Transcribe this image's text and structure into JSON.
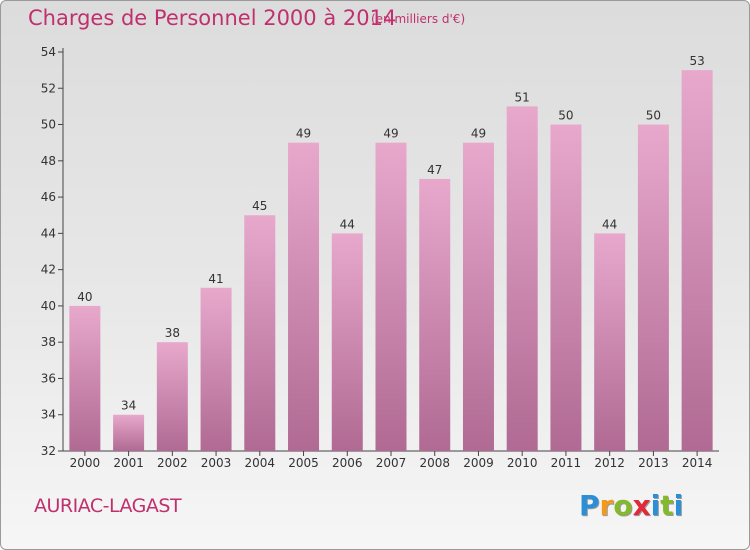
{
  "header": {
    "title": "Charges de Personnel 2000 à 2014",
    "subtitle": "(en milliers d'€)"
  },
  "footer": {
    "commune": "AURIAC-LAGAST",
    "logo_letters": [
      "P",
      "r",
      "o",
      "x",
      "i",
      "t",
      "i"
    ],
    "logo_colors": [
      "#2a8fd6",
      "#f39a1c",
      "#84b92b",
      "#e02a3a",
      "#2a8fd6",
      "#84b92b",
      "#2a8fd6"
    ]
  },
  "colors": {
    "title": "#c0306e",
    "bar_top": "#e8a8cc",
    "bar_bottom": "#b06a93"
  },
  "chart_data": {
    "type": "bar",
    "categories": [
      "2000",
      "2001",
      "2002",
      "2003",
      "2004",
      "2005",
      "2006",
      "2007",
      "2008",
      "2009",
      "2010",
      "2011",
      "2012",
      "2013",
      "2014"
    ],
    "values": [
      40,
      34,
      38,
      41,
      45,
      49,
      44,
      49,
      47,
      49,
      51,
      50,
      44,
      50,
      53
    ],
    "data_labels": [
      "40",
      "34",
      "38",
      "41",
      "45",
      "49",
      "44",
      "49",
      "47",
      "49",
      "51",
      "50",
      "44",
      "50",
      "53"
    ],
    "yticks": [
      32,
      34,
      36,
      38,
      40,
      42,
      44,
      46,
      48,
      50,
      52,
      54
    ],
    "ylim": [
      32,
      54
    ],
    "xlabel": "",
    "ylabel": "",
    "grid": false,
    "legend": "none"
  }
}
